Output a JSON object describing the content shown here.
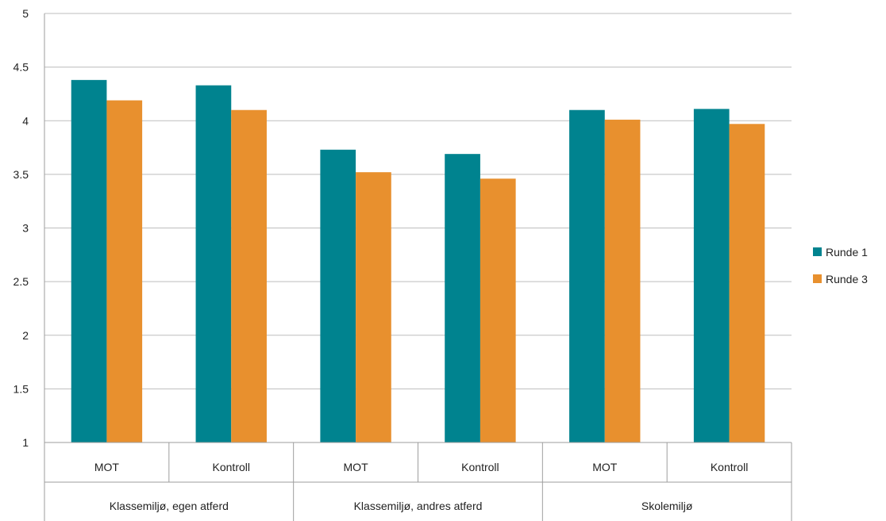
{
  "chart_data": {
    "type": "bar",
    "groups": [
      {
        "label": "Klassemiljø, egen atferd",
        "categories": [
          "MOT",
          "Kontroll"
        ]
      },
      {
        "label": "Klassemiljø, andres atferd",
        "categories": [
          "MOT",
          "Kontroll"
        ]
      },
      {
        "label": "Skolemiljø",
        "categories": [
          "MOT",
          "Kontroll"
        ]
      }
    ],
    "categories": [
      "MOT",
      "Kontroll",
      "MOT",
      "Kontroll",
      "MOT",
      "Kontroll"
    ],
    "series": [
      {
        "name": "Runde 1",
        "color": "#00838f",
        "values": [
          4.38,
          4.33,
          3.73,
          3.69,
          4.1,
          4.11
        ]
      },
      {
        "name": "Runde 3",
        "color": "#e8902e",
        "values": [
          4.19,
          4.1,
          3.52,
          3.46,
          4.01,
          3.97
        ]
      }
    ],
    "ylim": [
      1,
      5
    ],
    "yticks": [
      "1",
      "1.5",
      "2",
      "2.5",
      "3",
      "3.5",
      "4",
      "4.5",
      "5"
    ],
    "grid": true,
    "legend_position": "right",
    "title": "",
    "xlabel": "",
    "ylabel": ""
  }
}
